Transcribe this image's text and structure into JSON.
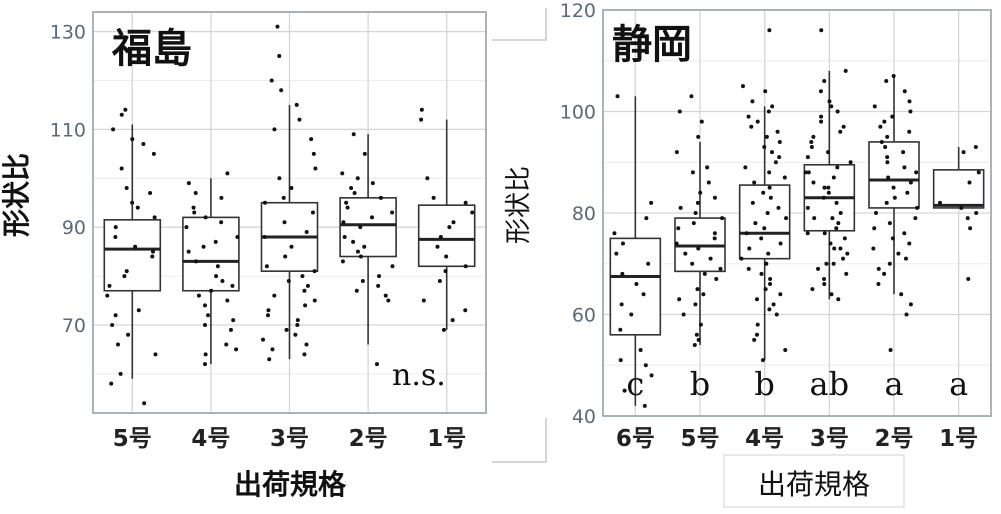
{
  "chart_data": [
    {
      "type": "boxplot",
      "title": "福島",
      "xlabel": "出荷規格",
      "ylabel": "形状比",
      "ylim": [
        52,
        134
      ],
      "yticks": [
        70,
        90,
        110,
        130
      ],
      "grid": true,
      "annotation": "n.s.",
      "categories": [
        "5号",
        "4号",
        "3号",
        "2号",
        "1号"
      ],
      "boxes": [
        {
          "category": "5号",
          "q1": 77,
          "median": 85.5,
          "q3": 91.5,
          "whisker_low": 59,
          "whisker_high": 111
        },
        {
          "category": "4号",
          "q1": 77,
          "median": 83,
          "q3": 92,
          "whisker_low": 62,
          "whisker_high": 100
        },
        {
          "category": "3号",
          "q1": 81,
          "median": 88,
          "q3": 95,
          "whisker_low": 63,
          "whisker_high": 115
        },
        {
          "category": "2号",
          "q1": 84,
          "median": 90.5,
          "q3": 96,
          "whisker_low": 66,
          "whisker_high": 109
        },
        {
          "category": "1号",
          "q1": 82,
          "median": 87.5,
          "q3": 94.5,
          "whisker_low": 69,
          "whisker_high": 112
        }
      ],
      "points": [
        [
          85,
          92,
          78,
          98,
          105,
          110,
          114,
          108,
          73,
          66,
          70,
          64,
          81,
          88,
          95,
          60,
          58,
          54,
          113,
          102,
          76,
          84,
          90,
          97,
          68,
          72,
          86,
          80,
          107,
          94
        ],
        [
          99,
          94,
          92,
          90,
          88,
          86,
          82,
          80,
          78,
          76,
          74,
          72,
          70,
          66,
          64,
          62,
          97,
          93,
          91,
          85,
          83,
          79,
          75,
          71,
          69,
          101,
          96,
          87,
          77,
          65
        ],
        [
          131,
          125,
          120,
          118,
          115,
          112,
          110,
          108,
          105,
          100,
          98,
          96,
          95,
          93,
          91,
          89,
          86,
          84,
          82,
          80,
          78,
          76,
          75,
          73,
          71,
          70,
          68,
          66,
          65,
          64,
          63,
          102,
          88,
          81,
          79,
          77,
          74,
          72,
          69,
          67
        ],
        [
          109,
          105,
          101,
          100,
          98,
          97,
          96,
          95,
          94,
          93,
          92,
          91,
          90,
          88,
          86,
          84,
          82,
          80,
          79,
          78,
          77,
          75,
          62,
          99,
          87,
          85,
          83,
          76
        ],
        [
          114,
          112,
          100,
          96,
          93,
          90,
          88,
          86,
          84,
          82,
          81,
          79,
          75,
          73,
          71,
          69,
          95,
          91
        ]
      ]
    },
    {
      "type": "boxplot",
      "title": "静岡",
      "xlabel": "出荷規格",
      "ylabel": "形状比",
      "ylim": [
        40,
        120
      ],
      "yticks": [
        40,
        60,
        80,
        100,
        120
      ],
      "grid": true,
      "categories": [
        "6号",
        "5号",
        "4号",
        "3号",
        "2号",
        "1号"
      ],
      "significance_letters": [
        "c",
        "b",
        "b",
        "ab",
        "a",
        "a"
      ],
      "boxes": [
        {
          "category": "6号",
          "q1": 56,
          "median": 67.5,
          "q3": 75,
          "whisker_low": 42,
          "whisker_high": 103
        },
        {
          "category": "5号",
          "q1": 68.5,
          "median": 73.5,
          "q3": 79,
          "whisker_low": 54,
          "whisker_high": 94
        },
        {
          "category": "4号",
          "q1": 71,
          "median": 76,
          "q3": 85.5,
          "whisker_low": 51,
          "whisker_high": 101
        },
        {
          "category": "3号",
          "q1": 76.5,
          "median": 83,
          "q3": 89.5,
          "whisker_low": 63,
          "whisker_high": 108
        },
        {
          "category": "2号",
          "q1": 81,
          "median": 86.5,
          "q3": 94,
          "whisker_low": 64,
          "whisker_high": 107
        },
        {
          "category": "1号",
          "q1": 81,
          "median": 81.5,
          "q3": 88.5,
          "whisker_low": 81,
          "whisker_high": 93
        }
      ],
      "points": [
        [
          103,
          82,
          79,
          76,
          74,
          72,
          70,
          68,
          66,
          64,
          62,
          60,
          57,
          53,
          51,
          50,
          48,
          45,
          42
        ],
        [
          103,
          100,
          98,
          95,
          92,
          89,
          86,
          84,
          82,
          80,
          79,
          78,
          77,
          76,
          75,
          74,
          73,
          72,
          71,
          70,
          69,
          68,
          67,
          65,
          63,
          62,
          60,
          58,
          56,
          55,
          54,
          88,
          83,
          81,
          64
        ],
        [
          116,
          105,
          104,
          102,
          101,
          100,
          99,
          98,
          97,
          96,
          95,
          94,
          93,
          92,
          91,
          90,
          89,
          88,
          87,
          86,
          85,
          84,
          83,
          82,
          81,
          80,
          79,
          78,
          77,
          76,
          75,
          74,
          73,
          72,
          71,
          70,
          69,
          68,
          67,
          66,
          65,
          64,
          63,
          62,
          61,
          60,
          58,
          56,
          55,
          53,
          51
        ],
        [
          116,
          108,
          106,
          104,
          102,
          101,
          100,
          99,
          98,
          97,
          96,
          95,
          94,
          93,
          92,
          91,
          90,
          89,
          88,
          87,
          86,
          85,
          84,
          83,
          82,
          81,
          80,
          79,
          78,
          77,
          76,
          75,
          74,
          73,
          72,
          71,
          70,
          69,
          68,
          67,
          66,
          65,
          64,
          63,
          88,
          85,
          79,
          76,
          73,
          70
        ],
        [
          107,
          106,
          104,
          102,
          101,
          100,
          99,
          98,
          97,
          96,
          95,
          94,
          93,
          92,
          91,
          90,
          89,
          88,
          87,
          86,
          85,
          84,
          83,
          82,
          81,
          80,
          79,
          78,
          77,
          76,
          75,
          74,
          73,
          72,
          71,
          70,
          69,
          68,
          66,
          64,
          62,
          60,
          53
        ],
        [
          93,
          92,
          88,
          86,
          82,
          81,
          80,
          79,
          77,
          67
        ]
      ]
    }
  ]
}
